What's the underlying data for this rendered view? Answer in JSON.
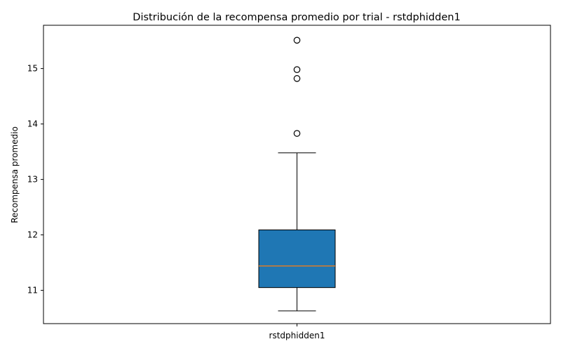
{
  "chart_data": {
    "type": "box",
    "title": "Distribución de la recompensa promedio por trial - rstdphidden1",
    "xlabel": "",
    "ylabel": "Recompensa promedio",
    "categories": [
      "rstdphidden1"
    ],
    "ylim": [
      10.4,
      15.78
    ],
    "yticks": [
      "11",
      "12",
      "13",
      "14",
      "15"
    ],
    "box": {
      "whisker_low": 10.63,
      "q1": 11.05,
      "median": 11.44,
      "q3": 12.09,
      "whisker_high": 13.48,
      "outliers": [
        13.83,
        14.82,
        14.98,
        15.51
      ]
    },
    "grid": false,
    "colors": {
      "box_fill": "#1f77b4",
      "median_line": "#ff7f0e",
      "frame": "#000000"
    }
  }
}
